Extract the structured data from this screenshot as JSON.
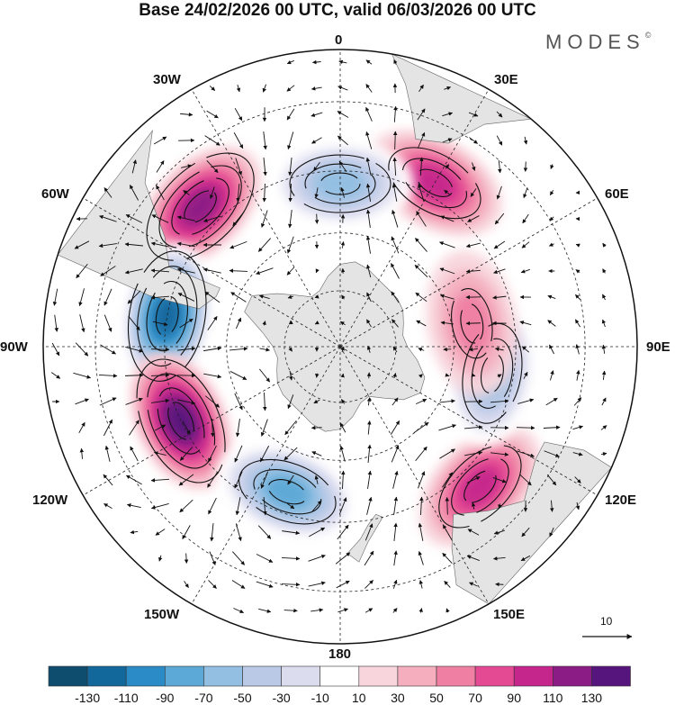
{
  "header": {
    "title": "Base 24/02/2026 00 UTC, valid 06/03/2026 00 UTC",
    "brand": "MODES",
    "brand_mark": "©"
  },
  "map": {
    "projection": "south polar stereographic",
    "longitude_labels": {
      "lon_0": "0",
      "lon_30e": "30E",
      "lon_60e": "60E",
      "lon_90e": "90E",
      "lon_120e": "120E",
      "lon_150e": "150E",
      "lon_180": "180",
      "lon_150w": "150W",
      "lon_120w": "120W",
      "lon_90w": "90W",
      "lon_60w": "60W",
      "lon_30w": "30W"
    },
    "anomaly_centers": [
      {
        "name": "positive anomaly south of Africa",
        "lon": 30,
        "lat": -42,
        "value": 70
      },
      {
        "name": "negative anomaly south Atlantic",
        "lon": 0,
        "lat": -48,
        "value": -50
      },
      {
        "name": "positive anomaly south Atlantic west",
        "lon": -45,
        "lat": -40,
        "value": 90
      },
      {
        "name": "negative anomaly south of South America",
        "lon": -80,
        "lat": -45,
        "value": -110
      },
      {
        "name": "positive anomaly southeast Pacific",
        "lon": -115,
        "lat": -45,
        "value": 110
      },
      {
        "name": "negative anomaly south Pacific",
        "lon": -160,
        "lat": -50,
        "value": -70
      },
      {
        "name": "positive anomaly south of Australia",
        "lon": 135,
        "lat": -40,
        "value": 70
      },
      {
        "name": "negative anomaly south Indian Ocean",
        "lon": 100,
        "lat": -50,
        "value": -50
      },
      {
        "name": "positive anomaly Indian Ocean",
        "lon": 80,
        "lat": -55,
        "value": 30
      }
    ],
    "colors": {
      "land": "#e4e4e4",
      "grid": "#222222"
    }
  },
  "vector_reference": {
    "label": "10"
  },
  "colorbar": {
    "colors": [
      "#0f4d6e",
      "#12689b",
      "#2a8bc7",
      "#5ca8d6",
      "#93bfe2",
      "#bac9e6",
      "#dcdcef",
      "#ffffff",
      "#f8d5dc",
      "#f4aebe",
      "#ef7fa3",
      "#e44a93",
      "#c4268b",
      "#8b1c85",
      "#56157c"
    ],
    "tick_labels": [
      "-130",
      "-110",
      "-90",
      "-70",
      "-50",
      "-30",
      "-10",
      "10",
      "30",
      "50",
      "70",
      "90",
      "110",
      "130"
    ]
  }
}
